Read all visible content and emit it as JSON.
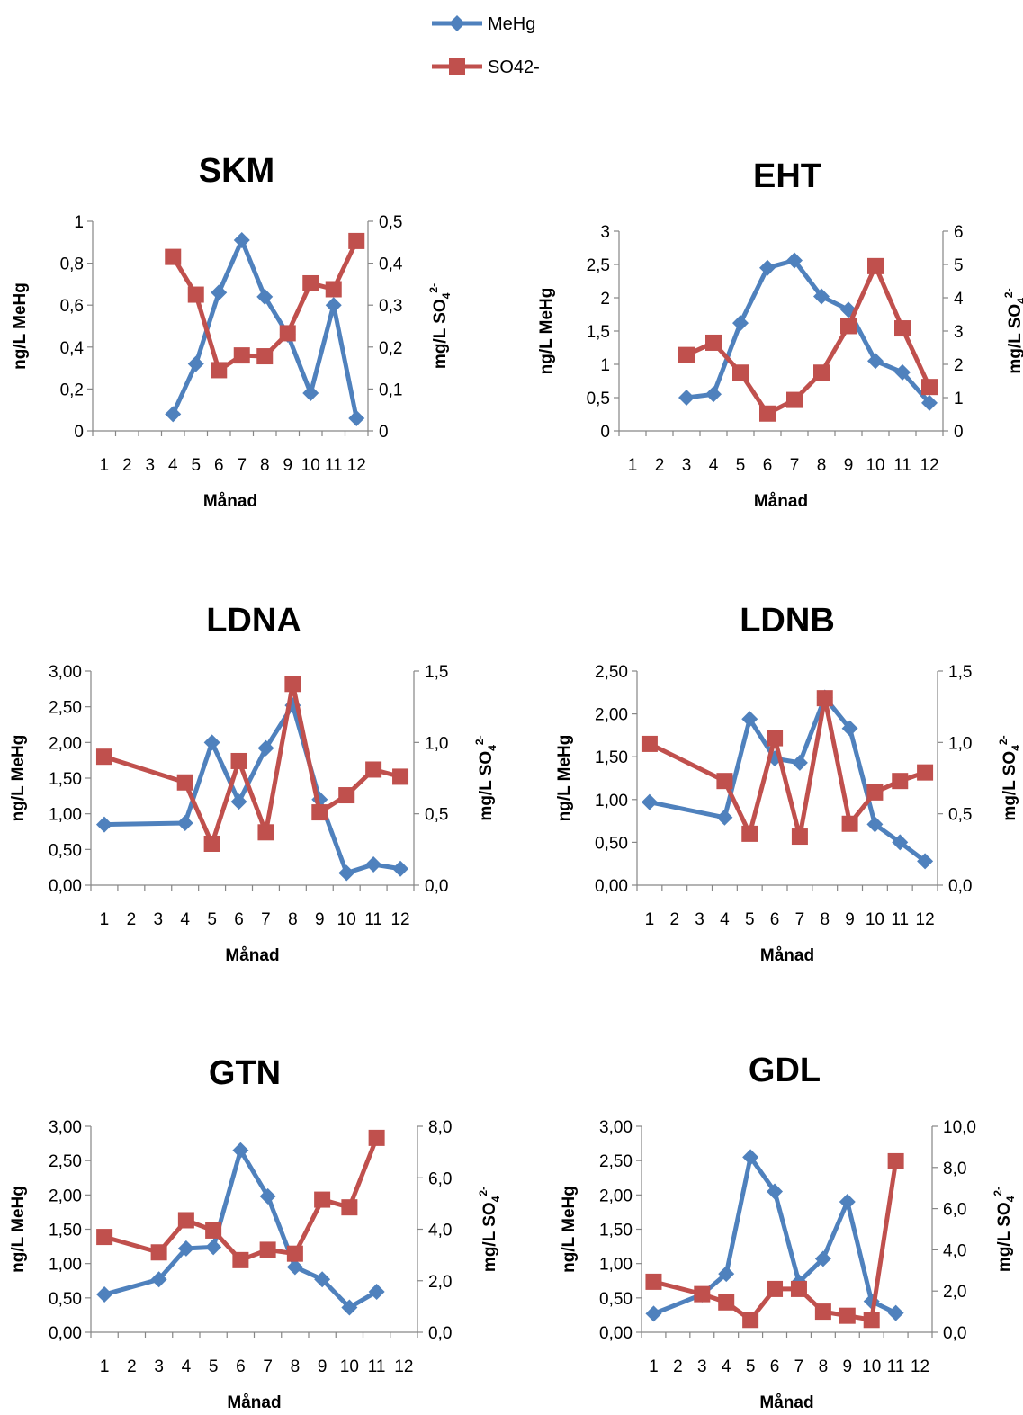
{
  "colors": {
    "mehg": "#4F81BD",
    "so4": "#C0504D",
    "axis": "#868686"
  },
  "legend": [
    {
      "label": "MeHg",
      "icon": "diamond-marker-icon",
      "color": "#4F81BD"
    },
    {
      "label": "SO42-",
      "icon": "square-marker-icon",
      "color": "#C0504D"
    }
  ],
  "chart_data": [
    {
      "type": "line",
      "title": "SKM",
      "xlabel": "Månad",
      "ylabel": "ng/L MeHg",
      "y2label_main": "mg/L SO",
      "y2label_sub": "4",
      "y2label_sup": "2-",
      "categories": [
        "1",
        "2",
        "3",
        "4",
        "5",
        "6",
        "7",
        "8",
        "9",
        "10",
        "11",
        "12"
      ],
      "ylim": [
        0,
        1
      ],
      "yticks": [
        "0",
        "0,2",
        "0,4",
        "0,6",
        "0,8",
        "1"
      ],
      "ytick_values": [
        0,
        0.2,
        0.4,
        0.6,
        0.8,
        1
      ],
      "y2lim": [
        0,
        0.5
      ],
      "y2ticks": [
        "0",
        "0,1",
        "0,2",
        "0,3",
        "0,4",
        "0,5"
      ],
      "y2tick_values": [
        0,
        0.1,
        0.2,
        0.3,
        0.4,
        0.5
      ],
      "series": [
        {
          "name": "MeHg",
          "axis": "left",
          "values": [
            null,
            null,
            null,
            0.08,
            0.32,
            0.66,
            0.91,
            0.64,
            0.46,
            0.18,
            0.6,
            0.06
          ]
        },
        {
          "name": "SO42-",
          "axis": "right",
          "values": [
            null,
            null,
            null,
            0.415,
            0.325,
            0.145,
            0.18,
            0.178,
            0.233,
            0.352,
            0.338,
            0.453
          ]
        }
      ]
    },
    {
      "type": "line",
      "title": "EHT",
      "xlabel": "Månad",
      "ylabel": "ng/L MeHg",
      "y2label_main": "mg/L SO",
      "y2label_sub": "4",
      "y2label_sup": "2-",
      "categories": [
        "1",
        "2",
        "3",
        "4",
        "5",
        "6",
        "7",
        "8",
        "9",
        "10",
        "11",
        "12"
      ],
      "ylim": [
        0,
        3
      ],
      "yticks": [
        "0",
        "0,5",
        "1",
        "1,5",
        "2",
        "2,5",
        "3"
      ],
      "ytick_values": [
        0,
        0.5,
        1,
        1.5,
        2,
        2.5,
        3
      ],
      "y2lim": [
        0,
        6
      ],
      "y2ticks": [
        "0",
        "1",
        "2",
        "3",
        "4",
        "5",
        "6"
      ],
      "y2tick_values": [
        0,
        1,
        2,
        3,
        4,
        5,
        6
      ],
      "series": [
        {
          "name": "MeHg",
          "axis": "left",
          "values": [
            null,
            null,
            0.5,
            0.55,
            1.62,
            2.45,
            2.56,
            2.02,
            1.82,
            1.05,
            0.88,
            0.42
          ]
        },
        {
          "name": "SO42-",
          "axis": "right",
          "values": [
            null,
            null,
            2.28,
            2.65,
            1.75,
            0.52,
            0.93,
            1.75,
            3.15,
            4.95,
            3.08,
            1.32
          ]
        }
      ]
    },
    {
      "type": "line",
      "title": "LDNA",
      "xlabel": "Månad",
      "ylabel": "ng/L MeHg",
      "y2label_main": "mg/L SO",
      "y2label_sub": "4",
      "y2label_sup": "2-",
      "categories": [
        "1",
        "2",
        "3",
        "4",
        "5",
        "6",
        "7",
        "8",
        "9",
        "10",
        "11",
        "12"
      ],
      "ylim": [
        0,
        3
      ],
      "yticks": [
        "0,00",
        "0,50",
        "1,00",
        "1,50",
        "2,00",
        "2,50",
        "3,00"
      ],
      "ytick_values": [
        0,
        0.5,
        1,
        1.5,
        2,
        2.5,
        3
      ],
      "y2lim": [
        0,
        1.5
      ],
      "y2ticks": [
        "0,0",
        "0,5",
        "1,0",
        "1,5"
      ],
      "y2tick_values": [
        0,
        0.5,
        1,
        1.5
      ],
      "series": [
        {
          "name": "MeHg",
          "axis": "left",
          "values": [
            0.85,
            null,
            null,
            0.87,
            2.0,
            1.17,
            1.92,
            2.52,
            1.2,
            0.17,
            0.29,
            0.23
          ]
        },
        {
          "name": "SO42-",
          "axis": "right",
          "values": [
            0.9,
            null,
            null,
            0.72,
            0.29,
            0.87,
            0.37,
            1.41,
            0.51,
            0.63,
            0.81,
            0.76
          ]
        }
      ]
    },
    {
      "type": "line",
      "title": "LDNB",
      "xlabel": "Månad",
      "ylabel": "ng/L MeHg",
      "y2label_main": "mg/L SO",
      "y2label_sub": "4",
      "y2label_sup": "2-",
      "categories": [
        "1",
        "2",
        "3",
        "4",
        "5",
        "6",
        "7",
        "8",
        "9",
        "10",
        "11",
        "12"
      ],
      "ylim": [
        0,
        2.5
      ],
      "yticks": [
        "0,00",
        "0,50",
        "1,00",
        "1,50",
        "2,00",
        "2,50"
      ],
      "ytick_values": [
        0,
        0.5,
        1,
        1.5,
        2,
        2.5
      ],
      "y2lim": [
        0,
        1.5
      ],
      "y2ticks": [
        "0,0",
        "0,5",
        "1,0",
        "1,5"
      ],
      "y2tick_values": [
        0,
        0.5,
        1,
        1.5
      ],
      "series": [
        {
          "name": "MeHg",
          "axis": "left",
          "values": [
            0.97,
            null,
            null,
            0.79,
            1.94,
            1.48,
            1.43,
            2.19,
            1.83,
            0.71,
            0.5,
            0.28
          ]
        },
        {
          "name": "SO42-",
          "axis": "right",
          "values": [
            0.99,
            null,
            null,
            0.73,
            0.36,
            1.03,
            0.34,
            1.31,
            0.43,
            0.65,
            0.73,
            0.79
          ]
        }
      ]
    },
    {
      "type": "line",
      "title": "GTN",
      "xlabel": "Månad",
      "ylabel": "ng/L MeHg",
      "y2label_main": "mg/L SO",
      "y2label_sub": "4",
      "y2label_sup": "2-",
      "categories": [
        "1",
        "2",
        "3",
        "4",
        "5",
        "6",
        "7",
        "8",
        "9",
        "10",
        "11",
        "12"
      ],
      "ylim": [
        0,
        3
      ],
      "yticks": [
        "0,00",
        "0,50",
        "1,00",
        "1,50",
        "2,00",
        "2,50",
        "3,00"
      ],
      "ytick_values": [
        0,
        0.5,
        1,
        1.5,
        2,
        2.5,
        3
      ],
      "y2lim": [
        0,
        8
      ],
      "y2ticks": [
        "0,0",
        "2,0",
        "4,0",
        "6,0",
        "8,0"
      ],
      "y2tick_values": [
        0,
        2,
        4,
        6,
        8
      ],
      "series": [
        {
          "name": "MeHg",
          "axis": "left",
          "values": [
            0.55,
            null,
            0.77,
            1.22,
            1.24,
            2.65,
            1.98,
            0.95,
            0.77,
            0.36,
            0.59,
            null
          ]
        },
        {
          "name": "SO42-",
          "axis": "right",
          "values": [
            3.7,
            null,
            3.1,
            4.35,
            3.95,
            2.8,
            3.2,
            3.05,
            5.15,
            4.85,
            7.55,
            null
          ]
        }
      ]
    },
    {
      "type": "line",
      "title": "GDL",
      "xlabel": "Månad",
      "ylabel": "ng/L MeHg",
      "y2label_main": "mg/L SO",
      "y2label_sub": "4",
      "y2label_sup": "2-",
      "categories": [
        "1",
        "2",
        "3",
        "4",
        "5",
        "6",
        "7",
        "8",
        "9",
        "10",
        "11",
        "12"
      ],
      "ylim": [
        0,
        3
      ],
      "yticks": [
        "0,00",
        "0,50",
        "1,00",
        "1,50",
        "2,00",
        "2,50",
        "3,00"
      ],
      "ytick_values": [
        0,
        0.5,
        1,
        1.5,
        2,
        2.5,
        3
      ],
      "y2lim": [
        0,
        10
      ],
      "y2ticks": [
        "0,0",
        "2,0",
        "4,0",
        "6,0",
        "8,0",
        "10,0"
      ],
      "y2tick_values": [
        0,
        2,
        4,
        6,
        8,
        10
      ],
      "series": [
        {
          "name": "MeHg",
          "axis": "left",
          "values": [
            0.27,
            null,
            0.55,
            0.85,
            2.55,
            2.05,
            0.73,
            1.07,
            1.9,
            0.45,
            0.28,
            null
          ]
        },
        {
          "name": "SO42-",
          "axis": "right",
          "values": [
            2.45,
            null,
            1.85,
            1.45,
            0.6,
            2.1,
            2.1,
            1.0,
            0.8,
            0.6,
            8.3,
            null
          ]
        }
      ]
    }
  ]
}
